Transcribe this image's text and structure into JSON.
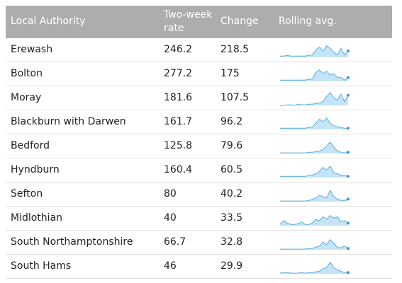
{
  "table": {
    "header": [
      "Local Authority",
      "Two-week rate",
      "Change",
      "Rolling avg."
    ],
    "rows": [
      {
        "name": "Erewash",
        "rate": 246.2,
        "change": 218.5,
        "rolling_avg": [
          1,
          1,
          1.5,
          1,
          1,
          1,
          1,
          1,
          1.5,
          2,
          6,
          8,
          5,
          9,
          7,
          4,
          2,
          7,
          2,
          5
        ]
      },
      {
        "name": "Bolton",
        "rate": 277.2,
        "change": 175,
        "rolling_avg": [
          1,
          1,
          1,
          1,
          1,
          1,
          1,
          1,
          1.5,
          2,
          7,
          9,
          6,
          8,
          5,
          6,
          3,
          3,
          1,
          3
        ]
      },
      {
        "name": "Moray",
        "rate": 181.6,
        "change": 107.5,
        "rolling_avg": [
          0,
          0,
          0.5,
          0.5,
          0,
          1,
          0.5,
          0.5,
          1,
          1,
          1.5,
          2,
          3,
          7,
          10,
          6,
          4,
          9,
          3,
          8
        ]
      },
      {
        "name": "Blackburn with Darwen",
        "rate": 161.7,
        "change": 96.2,
        "rolling_avg": [
          1,
          1,
          1,
          1,
          1,
          1,
          1,
          1,
          1.5,
          2,
          5,
          8,
          6,
          9,
          5,
          3,
          2,
          1.5,
          1,
          1
        ]
      },
      {
        "name": "Bedford",
        "rate": 125.8,
        "change": 79.6,
        "rolling_avg": [
          0.5,
          0.5,
          0.5,
          0.5,
          0.5,
          0.5,
          0.5,
          0.5,
          1,
          1,
          1.5,
          2,
          3,
          6,
          9,
          5,
          2,
          1,
          0.5,
          1
        ]
      },
      {
        "name": "Hyndburn",
        "rate": 160.4,
        "change": 60.5,
        "rolling_avg": [
          1,
          1,
          1,
          1,
          1,
          1,
          1,
          1,
          1.5,
          2,
          3,
          5,
          8,
          6,
          9,
          4,
          3,
          2,
          1.5,
          1
        ]
      },
      {
        "name": "Sefton",
        "rate": 80,
        "change": 40.2,
        "rolling_avg": [
          0.5,
          0.5,
          0.5,
          0.5,
          0.5,
          0.5,
          0.5,
          0.5,
          1,
          1.5,
          3,
          5,
          4,
          3,
          9,
          4,
          2,
          1,
          1,
          2
        ]
      },
      {
        "name": "Midlothian",
        "rate": 40,
        "change": 33.5,
        "rolling_avg": [
          1,
          4,
          2,
          1,
          1,
          1.5,
          3,
          1,
          1,
          2,
          5,
          4,
          7,
          5,
          8,
          6,
          7,
          3,
          4,
          2
        ]
      },
      {
        "name": "South Northamptonshire",
        "rate": 66.7,
        "change": 32.8,
        "rolling_avg": [
          0.5,
          0.5,
          0.5,
          0.5,
          0.5,
          0.5,
          0.5,
          0.5,
          1,
          1,
          2,
          3,
          6,
          4,
          8,
          5,
          2,
          1.5,
          3,
          1
        ]
      },
      {
        "name": "South Hams",
        "rate": 46,
        "change": 29.9,
        "rolling_avg": [
          0.5,
          1,
          1,
          0.5,
          0.5,
          0.5,
          1,
          0.5,
          1,
          1,
          1.5,
          2,
          4,
          5,
          9,
          5,
          3,
          2,
          1,
          1
        ]
      }
    ]
  }
}
